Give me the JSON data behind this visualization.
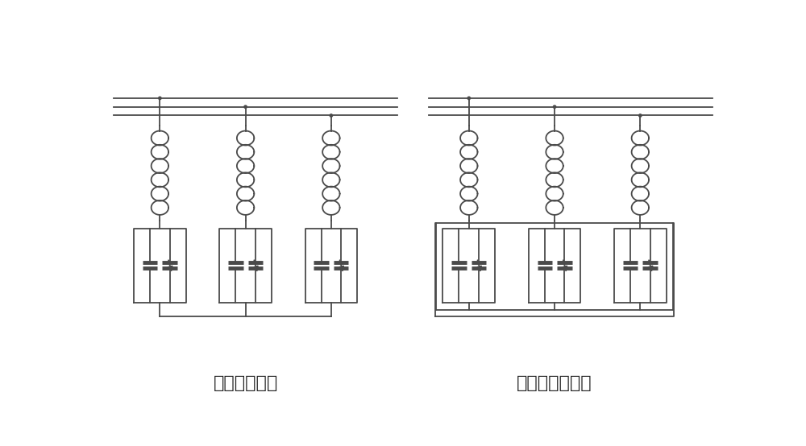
{
  "bg_color": "#ffffff",
  "line_color": "#4a4a4a",
  "title_left": "三相星形结构",
  "title_right": "三相三角形结构",
  "title_fontsize": 16,
  "fig_width": 10.0,
  "fig_height": 5.54
}
